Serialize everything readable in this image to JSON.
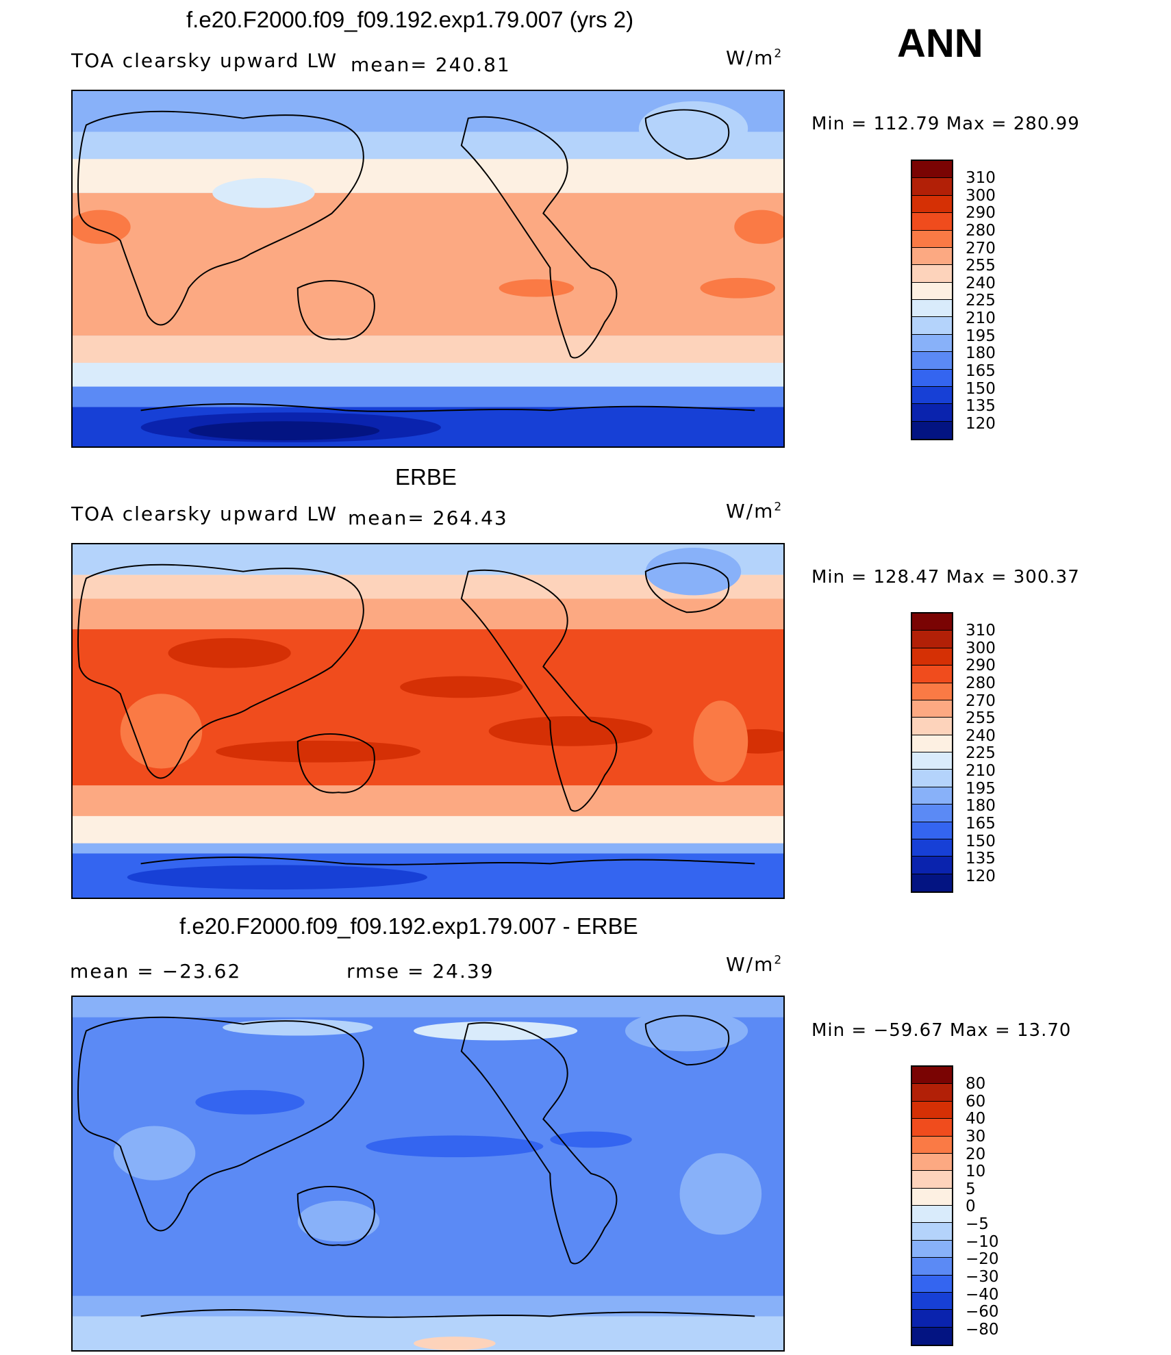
{
  "season": "ANN",
  "units": "W/m",
  "units_sup": "2",
  "panels": [
    {
      "title": "f.e20.F2000.f09_f09.192.exp1.79.007 (yrs 2)",
      "left_label": "TOA clearsky upward LW",
      "stat1": "mean= 240.81",
      "stat2": "",
      "minmax": "Min  =  112.79  Max  =  280.99",
      "levels": [
        "310",
        "300",
        "290",
        "280",
        "270",
        "255",
        "240",
        "225",
        "210",
        "195",
        "180",
        "165",
        "150",
        "135",
        "120"
      ]
    },
    {
      "title": "ERBE",
      "left_label": "TOA clearsky upward LW",
      "stat1": "mean= 264.43",
      "stat2": "",
      "minmax": "Min  =  128.47  Max  =  300.37",
      "levels": [
        "310",
        "300",
        "290",
        "280",
        "270",
        "255",
        "240",
        "225",
        "210",
        "195",
        "180",
        "165",
        "150",
        "135",
        "120"
      ]
    },
    {
      "title": "f.e20.F2000.f09_f09.192.exp1.79.007 - ERBE",
      "left_label": "",
      "stat1": "mean  =  −23.62",
      "stat2": "rmse  =    24.39",
      "minmax": "Min  =  −59.67  Max  =    13.70",
      "levels": [
        "80",
        "60",
        "40",
        "30",
        "20",
        "10",
        "5",
        "0",
        "−5",
        "−10",
        "−20",
        "−30",
        "−40",
        "−60",
        "−80"
      ]
    }
  ],
  "palette": [
    "#7a0403",
    "#b22007",
    "#d53005",
    "#f04c1d",
    "#fa7a45",
    "#fca982",
    "#fdd3bb",
    "#fdf0e2",
    "#d9ebfb",
    "#b4d3fb",
    "#88b1f9",
    "#5b8af5",
    "#3465f0",
    "#1740d6",
    "#0a23ae",
    "#031482"
  ]
}
